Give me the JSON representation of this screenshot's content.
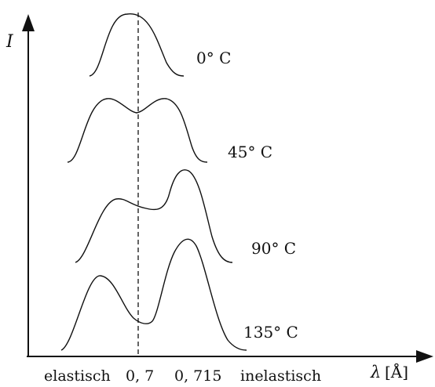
{
  "axes": {
    "y_label": "I",
    "x_unit_symbol": "λ",
    "x_unit": "[Å]"
  },
  "x_annotations": {
    "elastic_label": "elastisch",
    "elastic_value": "0, 7",
    "inelastic_value": "0, 715",
    "inelastic_label": "inelastisch"
  },
  "curves": [
    {
      "label": "0° C"
    },
    {
      "label": "45° C"
    },
    {
      "label": "90° C"
    },
    {
      "label": "135° C"
    }
  ],
  "colors": {
    "ink": "#111111",
    "background": "#ffffff"
  }
}
